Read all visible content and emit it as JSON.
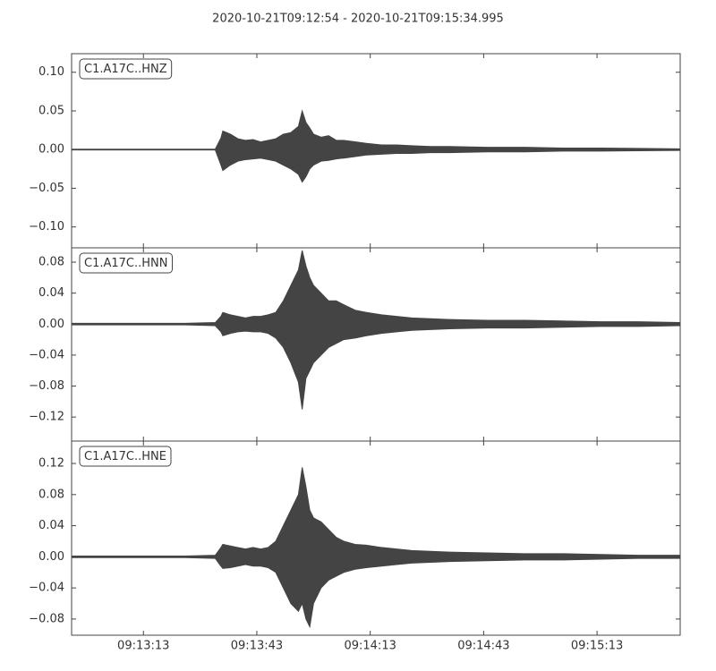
{
  "title": "2020-10-21T09:12:54  -  2020-10-21T09:15:34.995",
  "chart_data": [
    {
      "type": "line",
      "label": "C1.A17C..HNZ",
      "x": [
        33174,
        33184,
        33194,
        33204,
        33212,
        33213.5,
        33214,
        33216,
        33218,
        33220,
        33222,
        33224,
        33226,
        33228,
        33230,
        33232,
        33234,
        33235,
        33236,
        33237,
        33238,
        33240,
        33242,
        33244,
        33246,
        33249,
        33252,
        33256,
        33260,
        33264,
        33269,
        33274,
        33284,
        33294,
        33304,
        33314,
        33324,
        33334.995
      ],
      "xlim": [
        33174,
        33334.995
      ],
      "ylim": [
        -0.127,
        0.124
      ],
      "yticks": [
        {
          "value": -0.1,
          "label": "−0.10"
        },
        {
          "value": -0.05,
          "label": "−0.05"
        },
        {
          "value": 0,
          "label": "0.00"
        },
        {
          "value": 0.05,
          "label": "0.05"
        },
        {
          "value": 0.1,
          "label": "0.10"
        }
      ],
      "series": [
        {
          "color": "#444444",
          "values": [
            0.0005,
            0.0005,
            0.0005,
            0.0005,
            0.0005,
            0.015,
            0.024,
            0.02,
            0.014,
            0.012,
            0.013,
            0.01,
            0.012,
            0.014,
            0.02,
            0.022,
            0.03,
            0.05,
            0.035,
            0.028,
            0.02,
            0.016,
            0.018,
            0.012,
            0.012,
            0.01,
            0.008,
            0.006,
            0.006,
            0.005,
            0.004,
            0.004,
            0.003,
            0.003,
            0.002,
            0.002,
            0.0015,
            0.001
          ]
        },
        {
          "color": "#444444",
          "values": [
            -0.0005,
            -0.0005,
            -0.0005,
            -0.0005,
            -0.0005,
            -0.02,
            -0.027,
            -0.02,
            -0.015,
            -0.013,
            -0.012,
            -0.011,
            -0.013,
            -0.015,
            -0.02,
            -0.025,
            -0.032,
            -0.042,
            -0.035,
            -0.025,
            -0.02,
            -0.015,
            -0.014,
            -0.012,
            -0.011,
            -0.009,
            -0.007,
            -0.006,
            -0.005,
            -0.005,
            -0.004,
            -0.004,
            -0.003,
            -0.003,
            -0.002,
            -0.002,
            -0.0015,
            -0.001
          ]
        }
      ]
    },
    {
      "type": "line",
      "label": "C1.A17C..HNN",
      "x": [
        33174,
        33184,
        33194,
        33204,
        33212,
        33213.5,
        33214,
        33216,
        33218,
        33220,
        33222,
        33224,
        33226,
        33228,
        33230,
        33232,
        33234,
        33235,
        33236,
        33237,
        33238,
        33240,
        33242,
        33244,
        33246,
        33249,
        33252,
        33256,
        33260,
        33264,
        33269,
        33274,
        33284,
        33294,
        33304,
        33314,
        33324,
        33334.995
      ],
      "xlim": [
        33174,
        33334.995
      ],
      "ylim": [
        -0.151,
        0.0985
      ],
      "yticks": [
        {
          "value": -0.12,
          "label": "−0.12"
        },
        {
          "value": -0.08,
          "label": "−0.08"
        },
        {
          "value": -0.04,
          "label": "−0.04"
        },
        {
          "value": 0,
          "label": "0.00"
        },
        {
          "value": 0.04,
          "label": "0.04"
        },
        {
          "value": 0.08,
          "label": "0.08"
        }
      ],
      "series": [
        {
          "color": "#444444",
          "values": [
            0.001,
            0.001,
            0.001,
            0.001,
            0.002,
            0.01,
            0.015,
            0.012,
            0.01,
            0.008,
            0.01,
            0.01,
            0.012,
            0.015,
            0.03,
            0.05,
            0.07,
            0.095,
            0.075,
            0.06,
            0.05,
            0.04,
            0.03,
            0.03,
            0.025,
            0.018,
            0.015,
            0.012,
            0.01,
            0.008,
            0.007,
            0.006,
            0.005,
            0.005,
            0.004,
            0.003,
            0.003,
            0.002
          ]
        },
        {
          "color": "#444444",
          "values": [
            -0.001,
            -0.001,
            -0.001,
            -0.001,
            -0.002,
            -0.01,
            -0.015,
            -0.012,
            -0.01,
            -0.009,
            -0.01,
            -0.01,
            -0.012,
            -0.018,
            -0.03,
            -0.05,
            -0.075,
            -0.11,
            -0.07,
            -0.06,
            -0.05,
            -0.04,
            -0.03,
            -0.025,
            -0.02,
            -0.018,
            -0.015,
            -0.012,
            -0.01,
            -0.008,
            -0.007,
            -0.006,
            -0.005,
            -0.005,
            -0.004,
            -0.003,
            -0.003,
            -0.002
          ]
        }
      ]
    },
    {
      "type": "line",
      "label": "C1.A17C..HNE",
      "x": [
        33174,
        33184,
        33194,
        33204,
        33212,
        33213.5,
        33214,
        33216,
        33218,
        33220,
        33222,
        33224,
        33226,
        33228,
        33230,
        33232,
        33234,
        33235,
        33236,
        33237,
        33238,
        33240,
        33242,
        33244,
        33246,
        33249,
        33252,
        33256,
        33260,
        33264,
        33269,
        33274,
        33284,
        33294,
        33304,
        33314,
        33324,
        33334.995
      ],
      "xlim": [
        33174,
        33334.995
      ],
      "xticks": [
        {
          "value": 33193,
          "label": "09:13:13"
        },
        {
          "value": 33223,
          "label": "09:13:43"
        },
        {
          "value": 33253,
          "label": "09:14:13"
        },
        {
          "value": 33283,
          "label": "09:14:43"
        },
        {
          "value": 33313,
          "label": "09:15:13"
        }
      ],
      "ylim": [
        -0.1008,
        0.1488
      ],
      "yticks": [
        {
          "value": -0.08,
          "label": "−0.08"
        },
        {
          "value": -0.04,
          "label": "−0.04"
        },
        {
          "value": 0,
          "label": "0.00"
        },
        {
          "value": 0.04,
          "label": "0.04"
        },
        {
          "value": 0.08,
          "label": "0.08"
        },
        {
          "value": 0.12,
          "label": "0.12"
        }
      ],
      "series": [
        {
          "color": "#444444",
          "values": [
            0.001,
            0.001,
            0.001,
            0.001,
            0.002,
            0.012,
            0.016,
            0.014,
            0.012,
            0.01,
            0.012,
            0.01,
            0.012,
            0.02,
            0.04,
            0.06,
            0.08,
            0.115,
            0.09,
            0.06,
            0.05,
            0.045,
            0.035,
            0.025,
            0.02,
            0.016,
            0.015,
            0.012,
            0.01,
            0.008,
            0.007,
            0.006,
            0.005,
            0.004,
            0.004,
            0.003,
            0.002,
            0.002
          ]
        },
        {
          "color": "#444444",
          "values": [
            -0.001,
            -0.001,
            -0.001,
            -0.001,
            -0.002,
            -0.012,
            -0.015,
            -0.014,
            -0.012,
            -0.01,
            -0.012,
            -0.012,
            -0.014,
            -0.02,
            -0.04,
            -0.06,
            -0.07,
            -0.06,
            -0.08,
            -0.09,
            -0.06,
            -0.04,
            -0.03,
            -0.025,
            -0.02,
            -0.016,
            -0.014,
            -0.012,
            -0.01,
            -0.008,
            -0.007,
            -0.006,
            -0.005,
            -0.004,
            -0.004,
            -0.003,
            -0.002,
            -0.002
          ]
        }
      ]
    }
  ]
}
